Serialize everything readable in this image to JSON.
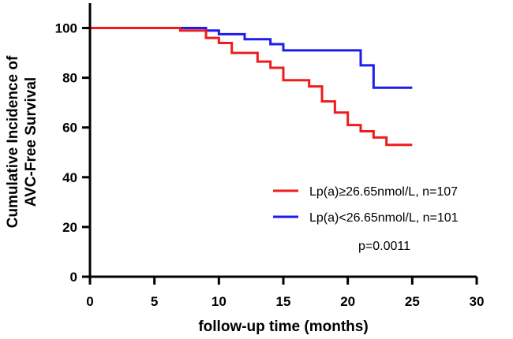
{
  "chart_data": {
    "type": "line",
    "step": true,
    "xlabel": "follow-up time (months)",
    "ylabel_lines": [
      "Cumulative Incidence of",
      "AVC-Free Survival"
    ],
    "xlim": [
      0,
      30
    ],
    "ylim": [
      0,
      110
    ],
    "xticks": [
      0,
      5,
      10,
      15,
      20,
      25,
      30
    ],
    "yticks": [
      0,
      20,
      40,
      60,
      80,
      100
    ],
    "grid": false,
    "legend_position": "bottom-right",
    "series": [
      {
        "name": "Lp(a)≥26.65nmol/L, n=107",
        "color": "#ee1c1c",
        "x": [
          0,
          7,
          9,
          10,
          11,
          13,
          14,
          15,
          17,
          18,
          19,
          20,
          21,
          22,
          23,
          25
        ],
        "y": [
          100,
          99,
          96,
          94,
          90,
          86.5,
          84,
          79,
          76.5,
          70.5,
          66,
          61,
          58.5,
          56,
          53,
          53
        ]
      },
      {
        "name": "Lp(a)<26.65nmol/L, n=101",
        "color": "#1c1cee",
        "x": [
          0,
          9,
          10,
          12,
          14,
          15,
          21,
          22,
          25
        ],
        "y": [
          100,
          99,
          97.5,
          95.5,
          93.5,
          91,
          85,
          76,
          76
        ]
      }
    ],
    "annotation": "p=0.0011"
  }
}
